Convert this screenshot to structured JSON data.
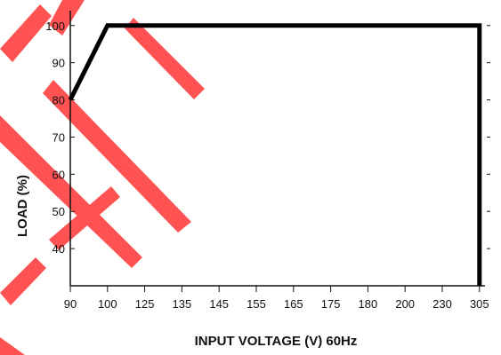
{
  "chart_data": {
    "type": "line",
    "title": "",
    "xlabel": "INPUT VOLTAGE (V) 60Hz",
    "ylabel": "LOAD (%)",
    "x_categories": [
      "90",
      "100",
      "125",
      "135",
      "145",
      "155",
      "165",
      "175",
      "180",
      "200",
      "230",
      "305"
    ],
    "y_ticks": [
      "40",
      "50",
      "60",
      "70",
      "80",
      "90",
      "100"
    ],
    "ylim": [
      30,
      104
    ],
    "grid": false,
    "series": [
      {
        "x": [
          "90",
          "100",
          "305",
          "305"
        ],
        "y": [
          80,
          100,
          100,
          30
        ],
        "color": "#000000"
      }
    ],
    "watermark_color": "#ff1a1a"
  }
}
